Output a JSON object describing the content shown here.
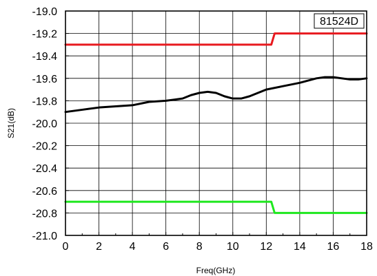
{
  "chart_data": {
    "type": "line",
    "title": "",
    "badge": "81524D",
    "xlabel": "Freq(GHz)",
    "ylabel": "S21(dB)",
    "xlim": [
      0,
      18
    ],
    "ylim": [
      -21.0,
      -19.0
    ],
    "x_ticks": [
      0,
      2,
      4,
      6,
      8,
      10,
      12,
      14,
      16,
      18
    ],
    "y_ticks": [
      -19.0,
      -19.2,
      -19.4,
      -19.6,
      -19.8,
      -20.0,
      -20.2,
      -20.4,
      -20.6,
      -20.8,
      -21.0
    ],
    "x_tick_labels": [
      "0",
      "2",
      "4",
      "6",
      "8",
      "10",
      "12",
      "14",
      "16",
      "18"
    ],
    "y_tick_labels": [
      "-19.0",
      "-19.2",
      "-19.4",
      "-19.6",
      "-19.8",
      "-20.0",
      "-20.2",
      "-20.4",
      "-20.6",
      "-20.8",
      "-21.0"
    ],
    "grid": true,
    "series": [
      {
        "color": "#e8191e",
        "x": [
          0,
          12.3,
          12.5,
          18
        ],
        "y": [
          -19.3,
          -19.3,
          -19.2,
          -19.2
        ]
      },
      {
        "color": "#000000",
        "x": [
          0,
          1,
          2,
          3,
          4,
          5,
          6,
          7,
          7.5,
          8,
          8.5,
          9,
          9.5,
          10,
          10.5,
          11,
          11.5,
          12,
          13,
          14,
          15,
          15.5,
          16,
          17,
          17.5,
          18
        ],
        "y": [
          -19.9,
          -19.88,
          -19.86,
          -19.85,
          -19.84,
          -19.81,
          -19.8,
          -19.78,
          -19.75,
          -19.73,
          -19.72,
          -19.73,
          -19.76,
          -19.78,
          -19.78,
          -19.76,
          -19.73,
          -19.7,
          -19.67,
          -19.64,
          -19.6,
          -19.59,
          -19.59,
          -19.61,
          -19.61,
          -19.6
        ]
      },
      {
        "color": "#1ee81e",
        "x": [
          0,
          12.3,
          12.5,
          18
        ],
        "y": [
          -20.7,
          -20.7,
          -20.8,
          -20.8
        ]
      }
    ]
  }
}
